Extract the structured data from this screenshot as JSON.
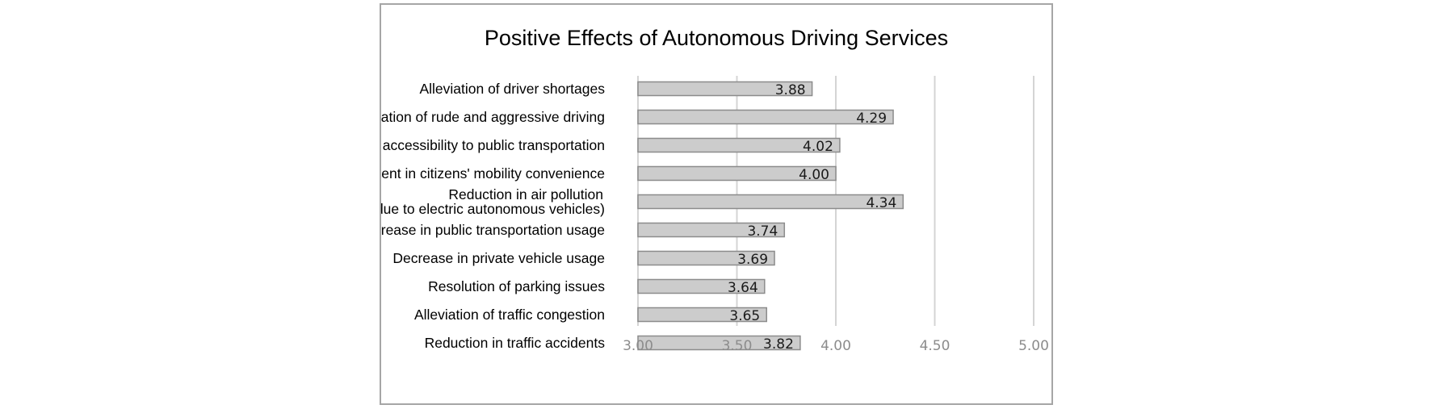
{
  "chart_data": {
    "type": "bar",
    "orientation": "horizontal",
    "title": "Positive Effects of Autonomous Driving Services",
    "xlabel": "",
    "ylabel": "",
    "categories": [
      "Alleviation of driver shortages",
      "Elimination of rude and aggressive driving",
      "Enhanced accessibility to public transportation",
      "Improvement in citizens' mobility convenience",
      "Reduction in air pollution\n(due to electric autonomous vehicles)",
      "Increase in public transportation usage",
      "Decrease in private vehicle usage",
      "Resolution of parking issues",
      "Alleviation of traffic congestion",
      "Reduction in traffic accidents"
    ],
    "values": [
      3.88,
      4.29,
      4.02,
      4.0,
      4.34,
      3.74,
      3.69,
      3.64,
      3.65,
      3.82
    ],
    "value_labels": [
      "3.88",
      "4.29",
      "4.02",
      "4.00",
      "4.34",
      "3.74",
      "3.69",
      "3.64",
      "3.65",
      "3.82"
    ],
    "xlim": [
      3.0,
      5.0
    ],
    "ticks": [
      3.0,
      3.5,
      4.0,
      4.5,
      5.0
    ],
    "tick_labels": [
      "3.00",
      "3.50",
      "4.00",
      "4.50",
      "5.00"
    ],
    "grid": true,
    "legend": "none",
    "colors": {
      "bar_fill": "#cccccc",
      "bar_stroke": "#8c8c8c",
      "grid": "#d4d4d4",
      "frame": "#a6a6a6"
    }
  }
}
